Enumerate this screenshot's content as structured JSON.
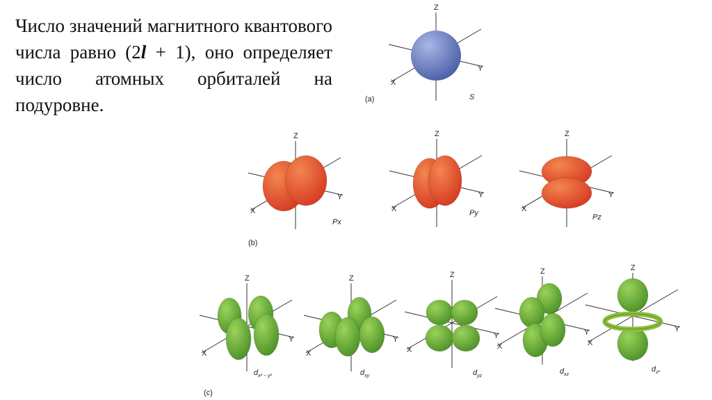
{
  "text": {
    "before": "Число значений магнитного квантового числа равно (2",
    "variable": "l",
    "after": " + 1), оно определяет число атомных орбиталей на подуровне."
  },
  "axes": {
    "x": "X",
    "y": "Y",
    "z": "Z"
  },
  "groups": [
    {
      "label": "(a)",
      "orbitals": [
        {
          "name": "S"
        }
      ]
    },
    {
      "label": "(b)",
      "orbitals": [
        {
          "name": "Px"
        },
        {
          "name": "Py"
        },
        {
          "name": "Pz"
        }
      ]
    },
    {
      "label": "(c)",
      "orbitals": [
        {
          "name": "d",
          "sub": "x² − y²"
        },
        {
          "name": "d",
          "sub": "xy"
        },
        {
          "name": "d",
          "sub": "yz"
        },
        {
          "name": "d",
          "sub": "xz"
        },
        {
          "name": "d",
          "sub": "z²"
        }
      ]
    }
  ]
}
